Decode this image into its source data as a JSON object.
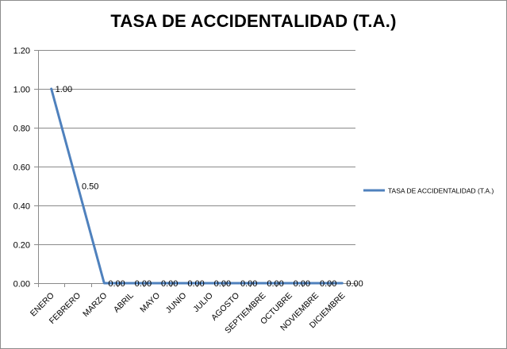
{
  "chart_data": {
    "type": "line",
    "title": "TASA DE ACCIDENTALIDAD (T.A.)",
    "xlabel": "",
    "ylabel": "",
    "categories": [
      "ENERO",
      "FEBRERO",
      "MARZO",
      "ABRIL",
      "MAYO",
      "JUNIO",
      "JULIO",
      "AGOSTO",
      "SEPTIEMBRE",
      "OCTUBRE",
      "NOVIEMBRE",
      "DICIEMBRE"
    ],
    "series": [
      {
        "name": "TASA DE ACCIDENTALIDAD (T.A.)",
        "values": [
          1.0,
          0.5,
          0.0,
          0.0,
          0.0,
          0.0,
          0.0,
          0.0,
          0.0,
          0.0,
          0.0,
          0.0
        ],
        "data_labels": [
          "1.00",
          "0.50",
          "0.00",
          "0.00",
          "0.00",
          "0.00",
          "0.00",
          "0.00",
          "0.00",
          "0.00",
          "0.00",
          "0.00"
        ],
        "color": "#4f81bd"
      }
    ],
    "ylim": [
      0,
      1.2
    ],
    "yticks": [
      "0.00",
      "0.20",
      "0.40",
      "0.60",
      "0.80",
      "1.00",
      "1.20"
    ],
    "ytick_values": [
      0,
      0.2,
      0.4,
      0.6,
      0.8,
      1.0,
      1.2
    ],
    "grid": true,
    "legend": "right"
  }
}
